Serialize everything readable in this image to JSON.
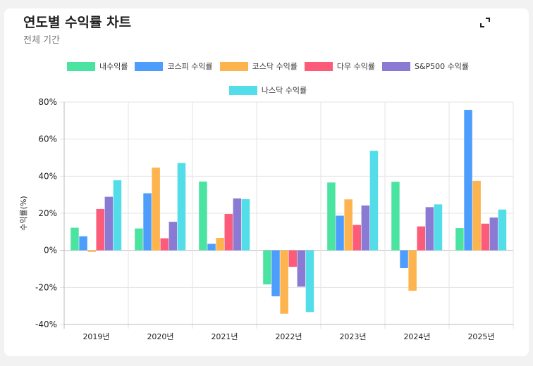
{
  "header": {
    "title": "연도별 수익률 차트",
    "subtitle": "전체 기간",
    "expand_icon": "expand-icon"
  },
  "chart_data": {
    "type": "bar",
    "title": "",
    "xlabel": "",
    "ylabel": "수익률(%)",
    "ylim": [
      -40,
      80
    ],
    "yticks": [
      -40,
      -20,
      0,
      20,
      40,
      60,
      80
    ],
    "ytick_labels": [
      "-40%",
      "-20%",
      "0%",
      "20%",
      "40%",
      "60%",
      "80%"
    ],
    "grid": true,
    "legend": "top",
    "categories": [
      "2019년",
      "2020년",
      "2021년",
      "2022년",
      "2023년",
      "2024년",
      "2025년"
    ],
    "series": [
      {
        "name": "내수익률",
        "color": "#4be3a0",
        "values": [
          12.2,
          11.8,
          37.1,
          -18.4,
          36.6,
          37.0,
          12.0
        ]
      },
      {
        "name": "코스피 수익률",
        "color": "#4d9efc",
        "values": [
          7.6,
          30.8,
          3.5,
          -24.8,
          18.7,
          -9.6,
          75.8
        ]
      },
      {
        "name": "코스닥 수익률",
        "color": "#fdb44f",
        "values": [
          -0.8,
          44.6,
          6.7,
          -34.2,
          27.5,
          -21.8,
          37.5
        ]
      },
      {
        "name": "다우 수익률",
        "color": "#fc5c7a",
        "values": [
          22.3,
          6.5,
          19.6,
          -8.9,
          13.7,
          12.9,
          14.4
        ]
      },
      {
        "name": "S&P500 수익률",
        "color": "#8a7ad4",
        "values": [
          28.9,
          15.4,
          28.0,
          -19.6,
          24.2,
          23.3,
          17.7
        ]
      },
      {
        "name": "나스닥 수익률",
        "color": "#52dde9",
        "values": [
          37.8,
          47.1,
          27.6,
          -33.3,
          53.7,
          24.8,
          22.0
        ]
      }
    ]
  }
}
